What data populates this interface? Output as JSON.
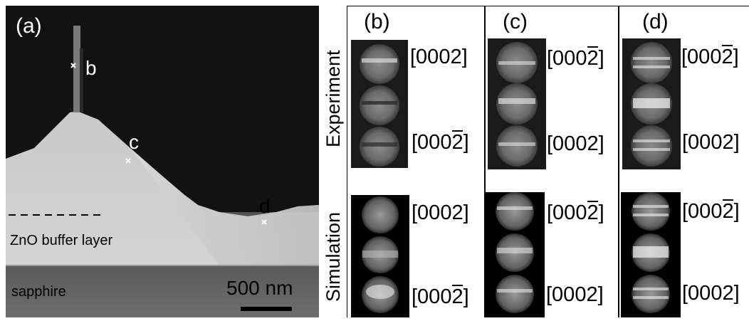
{
  "panel_a": {
    "label": "(a)",
    "point_b": "b",
    "point_c": "c",
    "point_d": "d",
    "buffer_label": "ZnO buffer layer",
    "substrate_label": "sapphire",
    "scale_bar": "500 nm"
  },
  "columns": {
    "b": "(b)",
    "c": "(c)",
    "d": "(d)"
  },
  "rows": {
    "experiment": "Experiment",
    "simulation": "Simulation"
  },
  "indices": {
    "pos_pre": "[000",
    "pos_digit": "2",
    "pos_post": "]",
    "neg_pre": "[000",
    "neg_digit": "2",
    "neg_post": "]",
    "plain": "[0002]"
  }
}
